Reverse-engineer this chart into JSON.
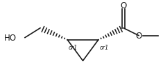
{
  "bg_color": "#ffffff",
  "line_color": "#1a1a1a",
  "text_color": "#1a1a1a",
  "figsize": [
    2.35,
    1.09
  ],
  "dpi": 100,
  "or1_label": "or1",
  "ho_label": "HO",
  "o_carbonyl_label": "O",
  "o_ester_label": "O",
  "lw": 1.2
}
